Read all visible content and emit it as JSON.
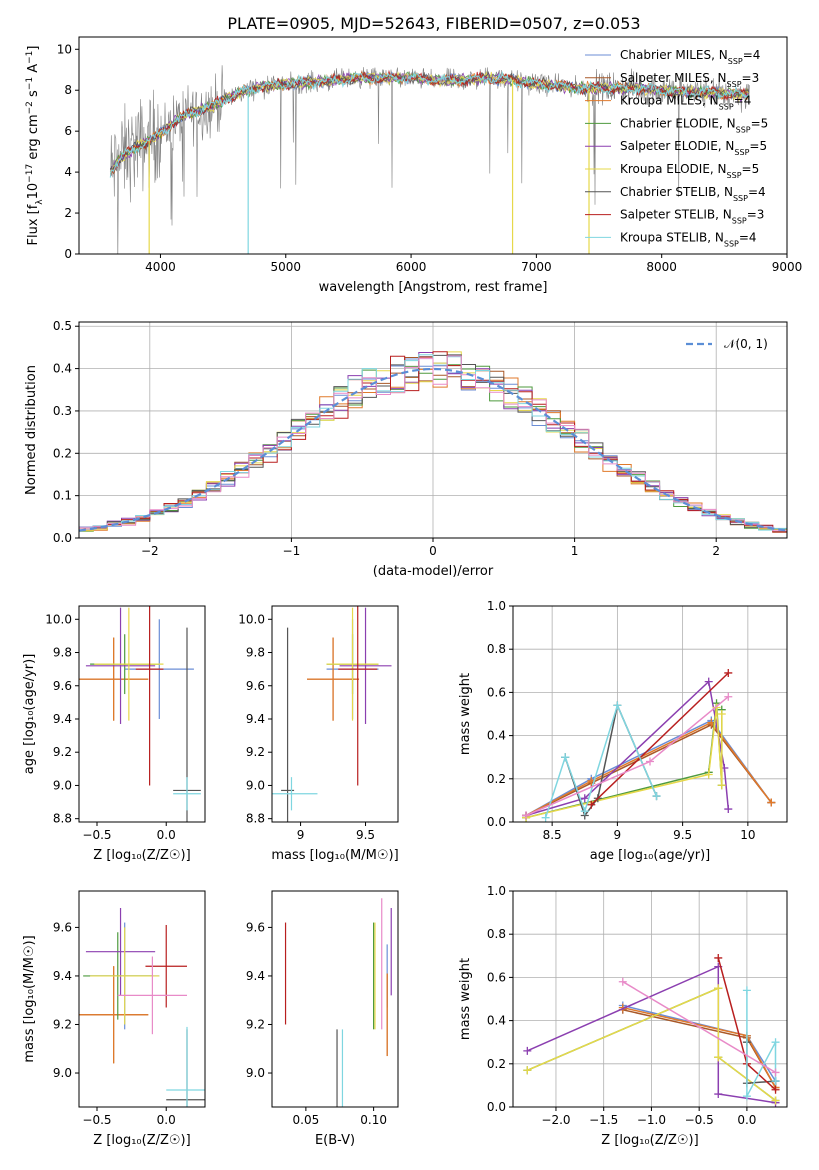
{
  "figure_title": "PLATE=0905, MJD=52643, FIBERID=0507, z=0.053",
  "models": [
    {
      "name": "Chabrier MILES, N",
      "sub": "SSP",
      "tail": "=4",
      "color": "#6b8ed6"
    },
    {
      "name": "Salpeter MILES, N",
      "sub": "SSP",
      "tail": "=3",
      "color": "#a85828"
    },
    {
      "name": "Kroupa MILES, N",
      "sub": "SSP",
      "tail": "=4",
      "color": "#e07a2b"
    },
    {
      "name": "Chabrier ELODIE, N",
      "sub": "SSP",
      "tail": "=5",
      "color": "#4e9a3e"
    },
    {
      "name": "Salpeter ELODIE, N",
      "sub": "SSP",
      "tail": "=5",
      "color": "#8b3fb0"
    },
    {
      "name": "Kroupa ELODIE, N",
      "sub": "SSP",
      "tail": "=5",
      "color": "#e6d84a"
    },
    {
      "name": "Chabrier STELIB, N",
      "sub": "SSP",
      "tail": "=4",
      "color": "#555555"
    },
    {
      "name": "Salpeter STELIB, N",
      "sub": "SSP",
      "tail": "=3",
      "color": "#b81f1f"
    },
    {
      "name": "Kroupa STELIB, N",
      "sub": "SSP",
      "tail": "=4",
      "color": "#7fd6e0"
    }
  ],
  "chart_data": [
    {
      "id": "spectrum",
      "type": "line",
      "xlabel": "wavelength [Angstrom, rest frame]",
      "ylabel_parts": [
        "Flux [f",
        "λ",
        "10",
        "−17",
        " erg cm",
        "−2",
        " s",
        "−1",
        " A",
        "−1",
        "]"
      ],
      "xlim": [
        3350,
        9000
      ],
      "ylim": [
        0,
        10.6
      ],
      "xticks": [
        4000,
        5000,
        6000,
        7000,
        8000,
        9000
      ],
      "yticks": [
        0,
        2,
        4,
        6,
        8,
        10
      ],
      "data_color": "#808080",
      "continuum": [
        [
          3600,
          4.0
        ],
        [
          3700,
          4.8
        ],
        [
          3800,
          5.2
        ],
        [
          3900,
          5.5
        ],
        [
          4000,
          5.9
        ],
        [
          4100,
          6.4
        ],
        [
          4200,
          6.8
        ],
        [
          4300,
          7.0
        ],
        [
          4400,
          7.2
        ],
        [
          4500,
          7.5
        ],
        [
          4600,
          7.8
        ],
        [
          4700,
          8.0
        ],
        [
          4800,
          8.2
        ],
        [
          5000,
          8.3
        ],
        [
          5200,
          8.4
        ],
        [
          5400,
          8.5
        ],
        [
          5600,
          8.6
        ],
        [
          5800,
          8.6
        ],
        [
          6000,
          8.6
        ],
        [
          6200,
          8.5
        ],
        [
          6400,
          8.5
        ],
        [
          6600,
          8.6
        ],
        [
          6800,
          8.5
        ],
        [
          7000,
          8.3
        ],
        [
          7200,
          8.2
        ],
        [
          7400,
          8.1
        ],
        [
          7600,
          8.1
        ],
        [
          7800,
          8.1
        ],
        [
          8000,
          8.0
        ],
        [
          8200,
          7.9
        ],
        [
          8400,
          7.9
        ],
        [
          8600,
          7.8
        ],
        [
          8700,
          7.8
        ]
      ]
    },
    {
      "id": "residuals",
      "type": "histogram",
      "xlabel": "(data-model)/error",
      "ylabel": "Normed distribution",
      "xlim": [
        -2.5,
        2.5
      ],
      "ylim": [
        0,
        0.51
      ],
      "xticks": [
        -2,
        -1,
        0,
        1,
        2
      ],
      "yticks": [
        0.0,
        0.1,
        0.2,
        0.3,
        0.4,
        0.5
      ],
      "xtick_labels": [
        "−2",
        "−1",
        "0",
        "1",
        "2"
      ],
      "yticklabels": [
        "0.0",
        "0.1",
        "0.2",
        "0.3",
        "0.4",
        "0.5"
      ],
      "bin_width": 0.1,
      "reference_label": "𝒩(0, 1)",
      "reference_color": "#5b8ed6"
    },
    {
      "id": "age_vs_Z",
      "type": "errorbar",
      "xlabel": "Z [log₁₀(Z/Z☉)]",
      "ylabel": "age  [log₁₀(age/yr)]",
      "xlim": [
        -0.63,
        0.28
      ],
      "ylim": [
        8.78,
        10.08
      ],
      "xticks": [
        -0.5,
        0.0
      ],
      "xtick_labels": [
        "−0.5",
        "0.0"
      ],
      "yticks": [
        8.8,
        9.0,
        9.2,
        9.4,
        9.6,
        9.8,
        10.0
      ],
      "points": [
        {
          "m": 0,
          "x": -0.05,
          "y": 9.7,
          "xe": 0.25,
          "ye": 0.3
        },
        {
          "m": 1,
          "x": -0.38,
          "y": 9.64,
          "xe": 0.25,
          "ye": 0.25
        },
        {
          "m": 2,
          "x": -0.38,
          "y": 9.64,
          "xe": 0.25,
          "ye": 0.25
        },
        {
          "m": 3,
          "x": -0.3,
          "y": 9.73,
          "xe": 0.25,
          "ye": 0.18
        },
        {
          "m": 4,
          "x": -0.33,
          "y": 9.72,
          "xe": 0.25,
          "ye": 0.35
        },
        {
          "m": 5,
          "x": -0.27,
          "y": 9.73,
          "xe": 0.25,
          "ye": 0.34
        },
        {
          "m": 6,
          "x": 0.15,
          "y": 8.97,
          "xe": 0.1,
          "ye": 0.98
        },
        {
          "m": 7,
          "x": -0.12,
          "y": 9.7,
          "xe": 0.1,
          "ye": 0.7
        },
        {
          "m": 8,
          "x": 0.15,
          "y": 8.95,
          "xe": 0.1,
          "ye": 0.1
        }
      ]
    },
    {
      "id": "age_vs_mass",
      "type": "errorbar",
      "xlabel": "mass [log₁₀(M/M☉)]",
      "ylabel": "",
      "xlim": [
        8.78,
        9.75
      ],
      "ylim": [
        8.78,
        10.08
      ],
      "xticks": [
        9.0,
        9.5
      ],
      "yticks": [
        8.8,
        9.0,
        9.2,
        9.4,
        9.6,
        9.8,
        10.0
      ],
      "points": [
        {
          "m": 0,
          "x": 9.4,
          "y": 9.7,
          "xe": 0.2,
          "ye": 0.3
        },
        {
          "m": 1,
          "x": 9.25,
          "y": 9.64,
          "xe": 0.2,
          "ye": 0.25
        },
        {
          "m": 2,
          "x": 9.25,
          "y": 9.64,
          "xe": 0.2,
          "ye": 0.25
        },
        {
          "m": 3,
          "x": 9.4,
          "y": 9.73,
          "xe": 0.2,
          "ye": 0.18
        },
        {
          "m": 4,
          "x": 9.5,
          "y": 9.72,
          "xe": 0.2,
          "ye": 0.35
        },
        {
          "m": 5,
          "x": 9.4,
          "y": 9.73,
          "xe": 0.2,
          "ye": 0.34
        },
        {
          "m": 6,
          "x": 8.9,
          "y": 8.97,
          "xe": 0.05,
          "ye": 0.98
        },
        {
          "m": 7,
          "x": 9.44,
          "y": 9.7,
          "xe": 0.15,
          "ye": 0.7
        },
        {
          "m": 8,
          "x": 8.93,
          "y": 8.95,
          "xe": 0.2,
          "ye": 0.1
        }
      ]
    },
    {
      "id": "mass_weight_vs_age",
      "type": "line",
      "xlabel": "age  [log₁₀(age/yr)]",
      "ylabel": "mass weight",
      "xlim": [
        8.2,
        10.3
      ],
      "ylim": [
        0,
        1.0
      ],
      "xticks": [
        8.5,
        9.0,
        9.5,
        10.0
      ],
      "yticks": [
        0.0,
        0.2,
        0.4,
        0.6,
        0.8,
        1.0
      ],
      "series": [
        {
          "m": 0,
          "x": [
            8.3,
            8.8,
            9.72,
            10.18
          ],
          "y": [
            0.03,
            0.2,
            0.47,
            0.09
          ]
        },
        {
          "m": 1,
          "x": [
            8.3,
            8.8,
            9.72,
            10.18
          ],
          "y": [
            0.03,
            0.18,
            0.45,
            0.09
          ]
        },
        {
          "m": 2,
          "x": [
            8.3,
            8.8,
            9.72,
            10.18
          ],
          "y": [
            0.03,
            0.19,
            0.46,
            0.09
          ]
        },
        {
          "m": 3,
          "x": [
            8.3,
            9.7,
            9.76,
            9.8,
            9.8
          ],
          "y": [
            0.02,
            0.23,
            0.55,
            0.17,
            0.52
          ]
        },
        {
          "m": 4,
          "x": [
            8.3,
            8.75,
            9.7,
            9.82,
            9.85
          ],
          "y": [
            0.03,
            0.11,
            0.65,
            0.25,
            0.06
          ]
        },
        {
          "m": 5,
          "x": [
            8.3,
            9.7,
            9.76,
            9.8,
            9.8
          ],
          "y": [
            0.02,
            0.22,
            0.53,
            0.17,
            0.5
          ]
        },
        {
          "m": 6,
          "x": [
            8.6,
            8.75,
            8.85,
            9.0,
            9.3
          ],
          "y": [
            0.3,
            0.03,
            0.11,
            0.54,
            0.12
          ]
        },
        {
          "m": 7,
          "x": [
            8.8,
            9.85
          ],
          "y": [
            0.08,
            0.69
          ]
        },
        {
          "m": 8,
          "x": [
            8.45,
            8.6,
            8.75,
            9.0,
            9.3
          ],
          "y": [
            0.02,
            0.3,
            0.05,
            0.54,
            0.12
          ]
        }
      ],
      "extra_series": [
        {
          "color": "#e88ac8",
          "x": [
            8.3,
            9.25,
            9.85
          ],
          "y": [
            0.03,
            0.28,
            0.58
          ]
        }
      ]
    },
    {
      "id": "mass_vs_Z",
      "type": "errorbar",
      "xlabel": "Z [log₁₀(Z/Z☉)]",
      "ylabel": "mass [log₁₀(M/M☉)]",
      "xlim": [
        -0.63,
        0.28
      ],
      "ylim": [
        8.86,
        9.75
      ],
      "xticks": [
        -0.5,
        0.0
      ],
      "xtick_labels": [
        "−0.5",
        "0.0"
      ],
      "yticks": [
        9.0,
        9.2,
        9.4,
        9.6
      ],
      "points": [
        {
          "m": 0,
          "x": -0.3,
          "y": 9.4,
          "xe": 0.25,
          "ye": 0.22
        },
        {
          "m": 1,
          "x": -0.38,
          "y": 9.24,
          "xe": 0.25,
          "ye": 0.2
        },
        {
          "m": 2,
          "x": -0.38,
          "y": 9.24,
          "xe": 0.25,
          "ye": 0.2
        },
        {
          "m": 3,
          "x": -0.35,
          "y": 9.4,
          "xe": 0.25,
          "ye": 0.18
        },
        {
          "m": 4,
          "x": -0.33,
          "y": 9.5,
          "xe": 0.25,
          "ye": 0.18
        },
        {
          "m": 5,
          "x": -0.3,
          "y": 9.4,
          "xe": 0.25,
          "ye": 0.2
        },
        {
          "m": 6,
          "x": 0.15,
          "y": 8.89,
          "xe": 0.15,
          "ye": 0.29
        },
        {
          "m": 7,
          "x": 0.0,
          "y": 9.44,
          "xe": 0.15,
          "ye": 0.17
        },
        {
          "m": 8,
          "x": 0.15,
          "y": 8.93,
          "xe": 0.15,
          "ye": 0.26
        }
      ],
      "extra_points": [
        {
          "color": "#e88ac8",
          "x": -0.1,
          "y": 9.32,
          "xe": 0.25,
          "ye": 0.16
        }
      ]
    },
    {
      "id": "mass_vs_ebv",
      "type": "errorbar",
      "xlabel": "E(B-V)",
      "ylabel": "",
      "xlim": [
        0.025,
        0.118
      ],
      "ylim": [
        8.86,
        9.75
      ],
      "xticks": [
        0.05,
        0.1
      ],
      "xtick_labels": [
        "0.05",
        "0.10"
      ],
      "yticks": [
        9.0,
        9.2,
        9.4,
        9.6
      ],
      "points": [
        {
          "m": 0,
          "x": 0.11,
          "y": 9.4,
          "xe": 0,
          "ye": 0.13
        },
        {
          "m": 1,
          "x": 0.11,
          "y": 9.24,
          "xe": 0,
          "ye": 0.17
        },
        {
          "m": 2,
          "x": 0.11,
          "y": 9.24,
          "xe": 0,
          "ye": 0.17
        },
        {
          "m": 3,
          "x": 0.1,
          "y": 9.4,
          "xe": 0,
          "ye": 0.22
        },
        {
          "m": 4,
          "x": 0.113,
          "y": 9.5,
          "xe": 0,
          "ye": 0.18
        },
        {
          "m": 5,
          "x": 0.101,
          "y": 9.4,
          "xe": 0,
          "ye": 0.22
        },
        {
          "m": 6,
          "x": 0.073,
          "y": 8.89,
          "xe": 0,
          "ye": 0.29
        },
        {
          "m": 7,
          "x": 0.035,
          "y": 9.41,
          "xe": 0,
          "ye": 0.21
        },
        {
          "m": 8,
          "x": 0.077,
          "y": 8.89,
          "xe": 0,
          "ye": 0.29
        }
      ],
      "extra_points": [
        {
          "color": "#e88ac8",
          "x": 0.106,
          "y": 9.45,
          "xe": 0,
          "ye": 0.27
        }
      ]
    },
    {
      "id": "mass_weight_vs_Z",
      "type": "line",
      "xlabel": "Z [log₁₀(Z/Z☉)]",
      "ylabel": "mass weight",
      "xlim": [
        -2.45,
        0.42
      ],
      "ylim": [
        0,
        1.0
      ],
      "xticks": [
        -2.0,
        -1.5,
        -1.0,
        -0.5,
        0.0
      ],
      "xtick_labels": [
        "−2.0",
        "−1.5",
        "−1.0",
        "−0.5",
        "0.0"
      ],
      "yticks": [
        0.0,
        0.2,
        0.4,
        0.6,
        0.8,
        1.0
      ],
      "series": [
        {
          "m": 0,
          "x": [
            -1.3,
            0.0,
            0.3
          ],
          "y": [
            0.47,
            0.33,
            0.12
          ]
        },
        {
          "m": 1,
          "x": [
            -1.3,
            0.0,
            0.3
          ],
          "y": [
            0.45,
            0.32,
            0.09
          ]
        },
        {
          "m": 2,
          "x": [
            -1.3,
            0.0,
            0.3
          ],
          "y": [
            0.46,
            0.33,
            0.09
          ]
        },
        {
          "m": 3,
          "x": [
            -2.3,
            -0.3,
            -0.3,
            0.3
          ],
          "y": [
            0.17,
            0.55,
            0.23,
            0.03
          ]
        },
        {
          "m": 4,
          "x": [
            -2.3,
            -0.3,
            -0.3,
            0.3
          ],
          "y": [
            0.26,
            0.65,
            0.06,
            0.02
          ]
        },
        {
          "m": 5,
          "x": [
            -2.3,
            -0.3,
            -0.3,
            0.3
          ],
          "y": [
            0.17,
            0.55,
            0.23,
            0.03
          ]
        },
        {
          "m": 6,
          "x": [
            0.0,
            0.0,
            0.3
          ],
          "y": [
            0.3,
            0.11,
            0.12
          ]
        },
        {
          "m": 7,
          "x": [
            -0.3,
            0.0,
            0.3
          ],
          "y": [
            0.69,
            0.2,
            0.08
          ]
        },
        {
          "m": 8,
          "x": [
            0.0,
            0.0,
            0.3,
            0.3
          ],
          "y": [
            0.54,
            0.05,
            0.3,
            0.12
          ]
        }
      ],
      "extra_series": [
        {
          "color": "#e88ac8",
          "x": [
            -1.3,
            0.3
          ],
          "y": [
            0.58,
            0.16
          ]
        }
      ]
    }
  ]
}
